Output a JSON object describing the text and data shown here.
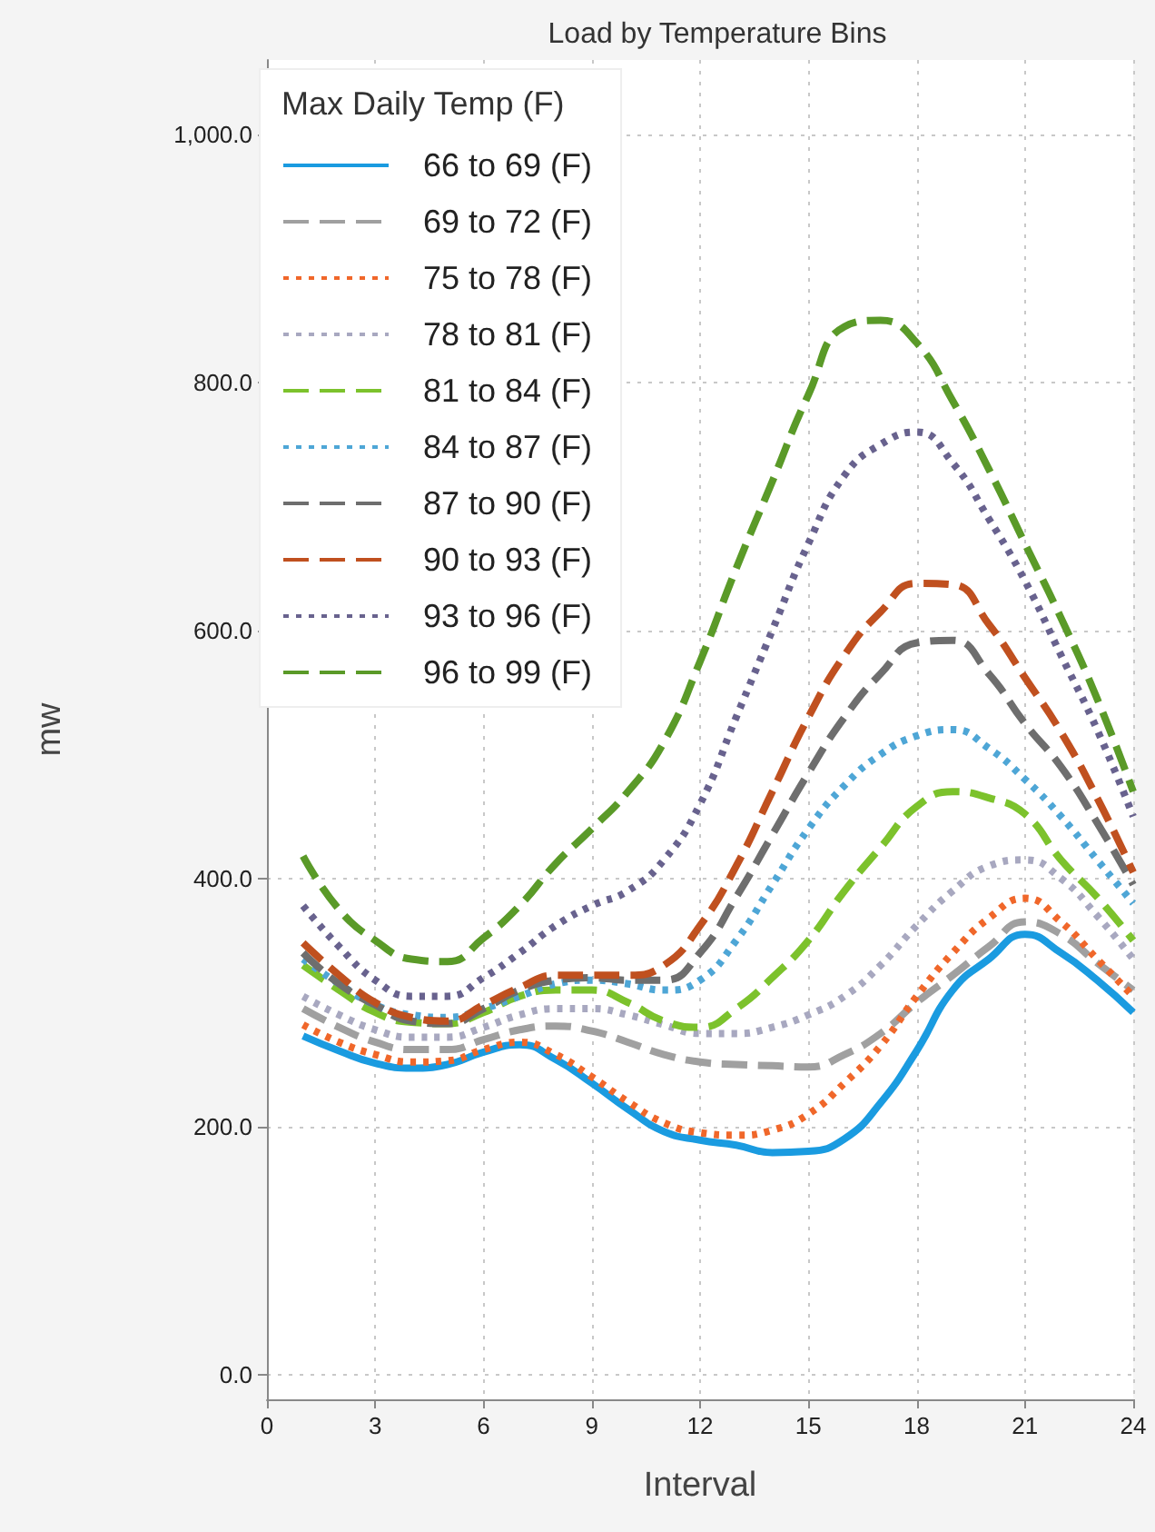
{
  "chart_data": {
    "type": "line",
    "title": "Load by Temperature Bins",
    "xlabel": "Interval",
    "ylabel": "mw",
    "legend_title": "Max Daily Temp (F)",
    "x": [
      1,
      2,
      3,
      4,
      5,
      6,
      7,
      8,
      9,
      10,
      11,
      12,
      13,
      14,
      15,
      16,
      17,
      18,
      19,
      20,
      21,
      22,
      23,
      24
    ],
    "xlim": [
      0,
      24
    ],
    "xticks": [
      0,
      3,
      6,
      9,
      12,
      15,
      18,
      21,
      24
    ],
    "ylim": [
      -20,
      1060
    ],
    "yticks": [
      {
        "value": 0,
        "label": "0.0"
      },
      {
        "value": 200,
        "label": "200.0"
      },
      {
        "value": 400,
        "label": "400.0"
      },
      {
        "value": 600,
        "label": "600.0"
      },
      {
        "value": 800,
        "label": "800.0"
      },
      {
        "value": 1000,
        "label": "1,000.0"
      }
    ],
    "grid": true,
    "legend": "top left",
    "marker": "none",
    "series": [
      {
        "name": "66 to 69 (F)",
        "color": "#1a9be0",
        "line_style": "solid",
        "values": [
          273,
          261,
          251,
          247,
          250,
          260,
          266,
          254,
          235,
          214,
          196,
          189,
          185,
          179,
          180,
          190,
          219,
          261,
          310,
          335,
          355,
          340,
          318,
          292
        ]
      },
      {
        "name": "69 to 72 (F)",
        "color": "#a0a0a0",
        "line_style": "dashed",
        "values": [
          295,
          280,
          268,
          262,
          262,
          270,
          278,
          281,
          277,
          268,
          258,
          252,
          250,
          249,
          248,
          258,
          275,
          300,
          322,
          345,
          365,
          355,
          332,
          310
        ]
      },
      {
        "name": "75 to 78 (F)",
        "color": "#f0672a",
        "line_style": "dotted",
        "values": [
          282,
          268,
          258,
          252,
          253,
          262,
          268,
          258,
          240,
          220,
          203,
          195,
          193,
          197,
          210,
          235,
          265,
          305,
          340,
          368,
          384,
          365,
          335,
          305
        ]
      },
      {
        "name": "78 to 81 (F)",
        "color": "#a8a8c0",
        "line_style": "dotted",
        "values": [
          305,
          290,
          278,
          272,
          272,
          280,
          290,
          295,
          295,
          290,
          282,
          275,
          275,
          280,
          290,
          305,
          330,
          362,
          390,
          410,
          415,
          400,
          370,
          335
        ]
      },
      {
        "name": "81 to 84 (F)",
        "color": "#7cc22c",
        "line_style": "dashed",
        "values": [
          330,
          310,
          292,
          284,
          283,
          292,
          305,
          310,
          310,
          300,
          285,
          280,
          295,
          320,
          350,
          390,
          425,
          458,
          470,
          465,
          452,
          415,
          385,
          350
        ]
      },
      {
        "name": "84 to 87 (F)",
        "color": "#4ea6d6",
        "line_style": "dotted",
        "values": [
          335,
          315,
          298,
          290,
          288,
          295,
          305,
          315,
          318,
          315,
          310,
          318,
          350,
          395,
          440,
          475,
          500,
          515,
          520,
          505,
          480,
          450,
          415,
          380
        ]
      },
      {
        "name": "87 to 90 (F)",
        "color": "#6e6e6e",
        "line_style": "dashed",
        "values": [
          340,
          315,
          298,
          285,
          283,
          295,
          310,
          318,
          320,
          318,
          318,
          340,
          385,
          435,
          485,
          530,
          565,
          590,
          592,
          565,
          525,
          490,
          445,
          395
        ]
      },
      {
        "name": "90 to 93 (F)",
        "color": "#c0501f",
        "line_style": "dashed",
        "values": [
          348,
          322,
          300,
          288,
          285,
          298,
          312,
          322,
          322,
          322,
          330,
          362,
          410,
          470,
          530,
          580,
          615,
          638,
          637,
          605,
          562,
          518,
          465,
          405
        ]
      },
      {
        "name": "93 to 96 (F)",
        "color": "#68628e",
        "line_style": "dotted",
        "values": [
          378,
          345,
          318,
          305,
          305,
          320,
          340,
          362,
          378,
          390,
          415,
          460,
          530,
          600,
          670,
          725,
          750,
          760,
          735,
          690,
          640,
          580,
          520,
          450
        ]
      },
      {
        "name": "96 to 99 (F)",
        "color": "#5a9a28",
        "line_style": "dashed",
        "values": [
          418,
          375,
          350,
          335,
          333,
          352,
          378,
          412,
          440,
          470,
          510,
          575,
          650,
          720,
          790,
          845,
          850,
          832,
          785,
          730,
          670,
          610,
          545,
          470
        ]
      }
    ]
  }
}
